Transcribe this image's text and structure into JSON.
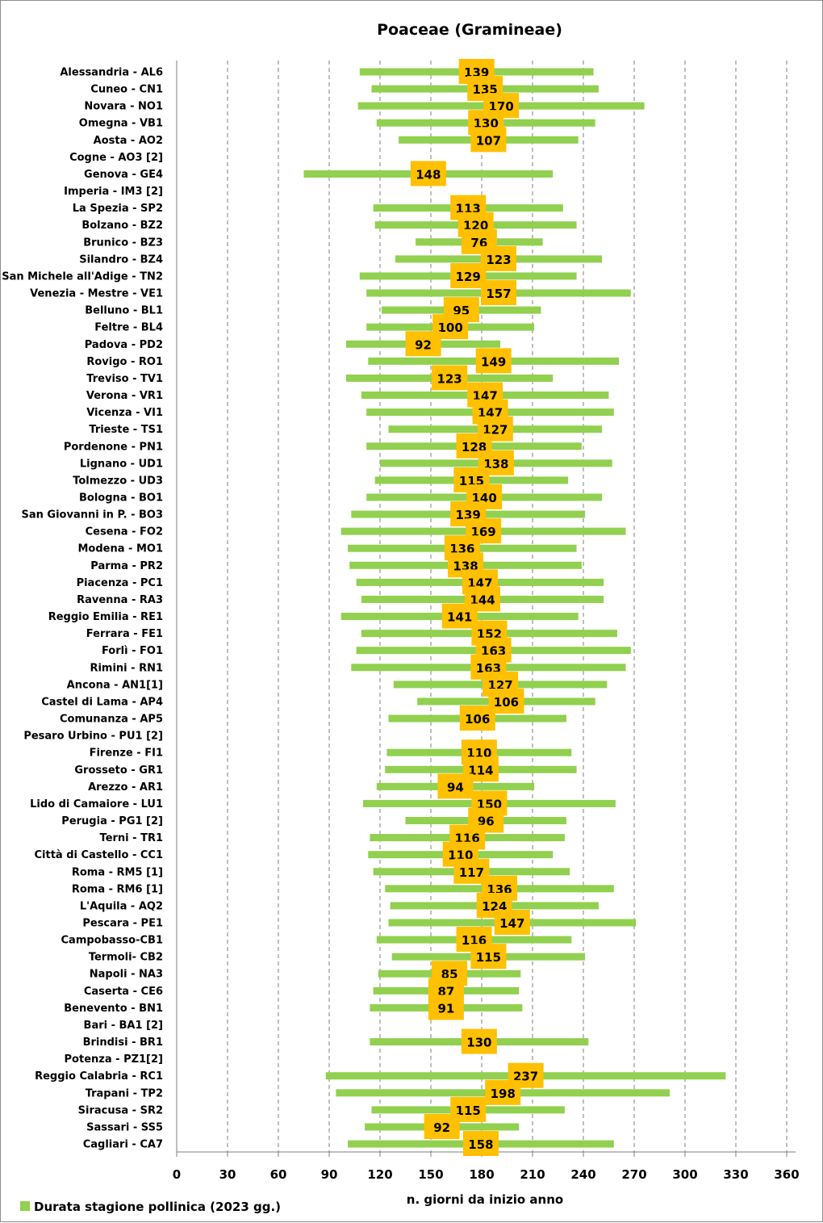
{
  "chart_data": {
    "type": "bar",
    "subtype": "floating-horizontal",
    "title": "Poaceae (Gramineae)",
    "xlabel": "n. giorni da inizio anno",
    "ylabel": "",
    "xlim": [
      0,
      365
    ],
    "xticks": [
      0,
      30,
      60,
      90,
      120,
      150,
      180,
      210,
      240,
      270,
      300,
      330,
      360
    ],
    "grid": "vertical-dashed",
    "legend": {
      "position": "bottom-left",
      "label": "Durata stagione pollinica (2023 gg.)"
    },
    "colors": {
      "bar": "#92d050",
      "label_box": "#ffc000",
      "grid": "#7f7f7f"
    },
    "series": [
      {
        "name": "Durata stagione pollinica (2023 gg.)",
        "rows": [
          {
            "station": "Alessandria - AL6",
            "start": 108,
            "end": 246,
            "duration": "139"
          },
          {
            "station": "Cuneo - CN1",
            "start": 115,
            "end": 249,
            "duration": "135"
          },
          {
            "station": "Novara - NO1",
            "start": 107,
            "end": 276,
            "duration": "170"
          },
          {
            "station": "Omegna - VB1",
            "start": 118,
            "end": 247,
            "duration": "130"
          },
          {
            "station": "Aosta - AO2",
            "start": 131,
            "end": 237,
            "duration": "107"
          },
          {
            "station": "Cogne - AO3 [2]",
            "start": null,
            "end": null,
            "duration": ""
          },
          {
            "station": "Genova - GE4",
            "start": 75,
            "end": 222,
            "duration": "148"
          },
          {
            "station": "Imperia - IM3 [2]",
            "start": null,
            "end": null,
            "duration": ""
          },
          {
            "station": "La Spezia - SP2",
            "start": 116,
            "end": 228,
            "duration": "113"
          },
          {
            "station": "Bolzano - BZ2",
            "start": 117,
            "end": 236,
            "duration": "120"
          },
          {
            "station": "Brunico - BZ3",
            "start": 141,
            "end": 216,
            "duration": "76"
          },
          {
            "station": "Silandro - BZ4",
            "start": 129,
            "end": 251,
            "duration": "123"
          },
          {
            "station": "San Michele all'Adige - TN2",
            "start": 108,
            "end": 236,
            "duration": "129"
          },
          {
            "station": "Venezia - Mestre - VE1",
            "start": 112,
            "end": 268,
            "duration": "157"
          },
          {
            "station": "Belluno - BL1",
            "start": 121,
            "end": 215,
            "duration": "95"
          },
          {
            "station": "Feltre - BL4",
            "start": 112,
            "end": 211,
            "duration": "100"
          },
          {
            "station": "Padova - PD2",
            "start": 100,
            "end": 191,
            "duration": "92"
          },
          {
            "station": "Rovigo - RO1",
            "start": 113,
            "end": 261,
            "duration": "149"
          },
          {
            "station": "Treviso - TV1",
            "start": 100,
            "end": 222,
            "duration": "123"
          },
          {
            "station": "Verona - VR1",
            "start": 109,
            "end": 255,
            "duration": "147"
          },
          {
            "station": "Vicenza - VI1",
            "start": 112,
            "end": 258,
            "duration": "147"
          },
          {
            "station": "Trieste - TS1",
            "start": 125,
            "end": 251,
            "duration": "127"
          },
          {
            "station": "Pordenone - PN1",
            "start": 112,
            "end": 239,
            "duration": "128"
          },
          {
            "station": "Lignano - UD1",
            "start": 120,
            "end": 257,
            "duration": "138"
          },
          {
            "station": "Tolmezzo - UD3",
            "start": 117,
            "end": 231,
            "duration": "115"
          },
          {
            "station": "Bologna - BO1",
            "start": 112,
            "end": 251,
            "duration": "140"
          },
          {
            "station": "San Giovanni in P. - BO3",
            "start": 103,
            "end": 241,
            "duration": "139"
          },
          {
            "station": "Cesena - FO2",
            "start": 97,
            "end": 265,
            "duration": "169"
          },
          {
            "station": "Modena - MO1",
            "start": 101,
            "end": 236,
            "duration": "136"
          },
          {
            "station": "Parma - PR2",
            "start": 102,
            "end": 239,
            "duration": "138"
          },
          {
            "station": "Piacenza - PC1",
            "start": 106,
            "end": 252,
            "duration": "147"
          },
          {
            "station": "Ravenna - RA3",
            "start": 109,
            "end": 252,
            "duration": "144"
          },
          {
            "station": "Reggio Emilia - RE1",
            "start": 97,
            "end": 237,
            "duration": "141"
          },
          {
            "station": "Ferrara - FE1",
            "start": 109,
            "end": 260,
            "duration": "152"
          },
          {
            "station": "Forlì - FO1",
            "start": 106,
            "end": 268,
            "duration": "163"
          },
          {
            "station": "Rimini - RN1",
            "start": 103,
            "end": 265,
            "duration": "163"
          },
          {
            "station": "Ancona - AN1[1]",
            "start": 128,
            "end": 254,
            "duration": "127"
          },
          {
            "station": "Castel di Lama - AP4",
            "start": 142,
            "end": 247,
            "duration": "106"
          },
          {
            "station": "Comunanza - AP5",
            "start": 125,
            "end": 230,
            "duration": "106"
          },
          {
            "station": "Pesaro Urbino - PU1 [2]",
            "start": null,
            "end": null,
            "duration": ""
          },
          {
            "station": "Firenze - FI1",
            "start": 124,
            "end": 233,
            "duration": "110"
          },
          {
            "station": "Grosseto - GR1",
            "start": 123,
            "end": 236,
            "duration": "114"
          },
          {
            "station": "Arezzo - AR1",
            "start": 118,
            "end": 211,
            "duration": "94"
          },
          {
            "station": "Lido di Camaiore - LU1",
            "start": 110,
            "end": 259,
            "duration": "150"
          },
          {
            "station": "Perugia - PG1 [2]",
            "start": 135,
            "end": 230,
            "duration": "96"
          },
          {
            "station": "Terni - TR1",
            "start": 114,
            "end": 229,
            "duration": "116"
          },
          {
            "station": "Città di Castello - CC1",
            "start": 113,
            "end": 222,
            "duration": "110"
          },
          {
            "station": "Roma - RM5 [1]",
            "start": 116,
            "end": 232,
            "duration": "117"
          },
          {
            "station": "Roma - RM6 [1]",
            "start": 123,
            "end": 258,
            "duration": "136"
          },
          {
            "station": "L'Aquila - AQ2",
            "start": 126,
            "end": 249,
            "duration": "124"
          },
          {
            "station": "Pescara - PE1",
            "start": 125,
            "end": 271,
            "duration": "147"
          },
          {
            "station": "Campobasso-CB1",
            "start": 118,
            "end": 233,
            "duration": "116"
          },
          {
            "station": "Termoli- CB2",
            "start": 127,
            "end": 241,
            "duration": "115"
          },
          {
            "station": "Napoli - NA3",
            "start": 119,
            "end": 203,
            "duration": "85"
          },
          {
            "station": "Caserta - CE6",
            "start": 116,
            "end": 202,
            "duration": "87"
          },
          {
            "station": "Benevento  - BN1",
            "start": 114,
            "end": 204,
            "duration": "91"
          },
          {
            "station": "Bari - BA1 [2]",
            "start": null,
            "end": null,
            "duration": ""
          },
          {
            "station": "Brindisi - BR1",
            "start": 114,
            "end": 243,
            "duration": "130"
          },
          {
            "station": "Potenza - PZ1[2]",
            "start": null,
            "end": null,
            "duration": ""
          },
          {
            "station": "Reggio Calabria - RC1",
            "start": 88,
            "end": 324,
            "duration": "237"
          },
          {
            "station": "Trapani - TP2",
            "start": 94,
            "end": 291,
            "duration": "198"
          },
          {
            "station": "Siracusa - SR2",
            "start": 115,
            "end": 229,
            "duration": "115"
          },
          {
            "station": "Sassari - SS5",
            "start": 111,
            "end": 202,
            "duration": "92"
          },
          {
            "station": "Cagliari - CA7",
            "start": 101,
            "end": 258,
            "duration": "158"
          }
        ]
      }
    ]
  }
}
